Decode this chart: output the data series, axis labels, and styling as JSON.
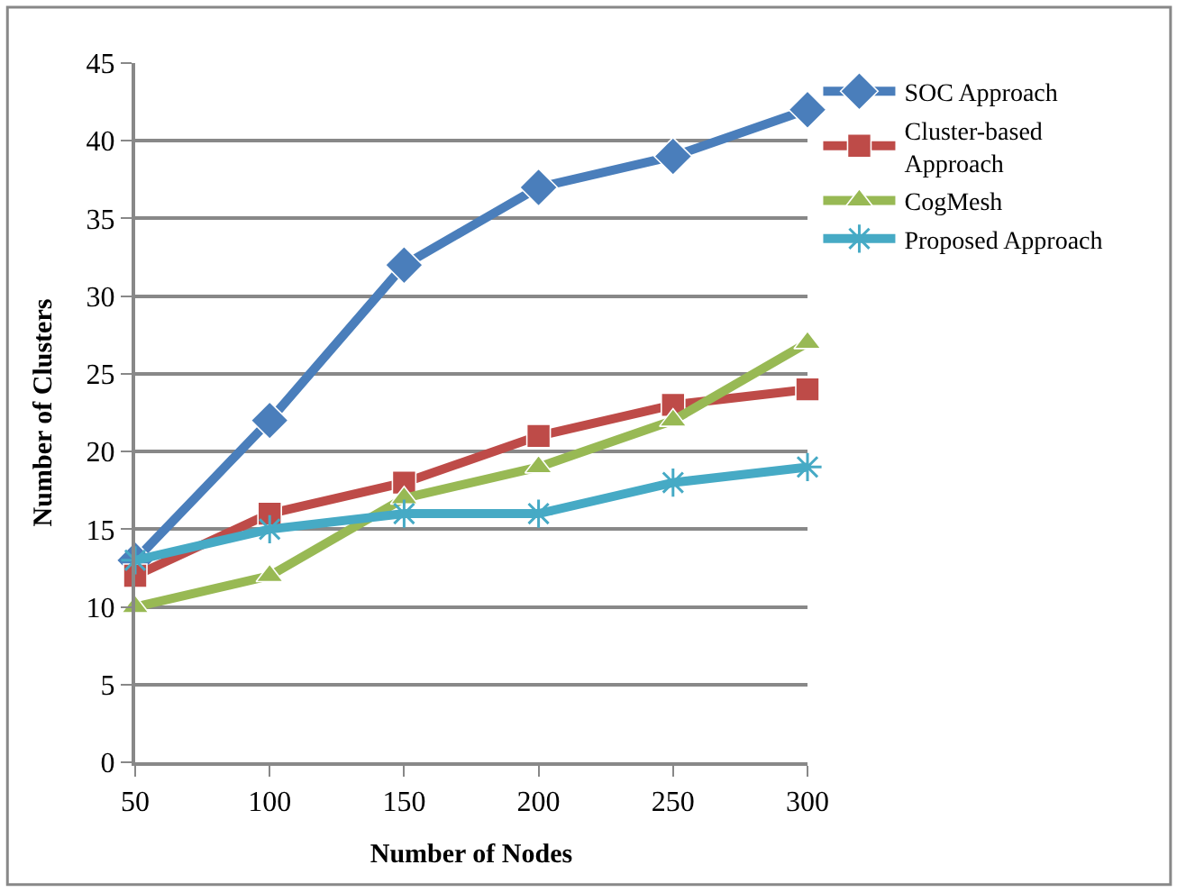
{
  "chart_data": {
    "type": "line",
    "xlabel": "Number of Nodes",
    "ylabel": "Number of Clusters",
    "x": [
      50,
      100,
      150,
      200,
      250,
      300
    ],
    "xlim": [
      50,
      300
    ],
    "xticks": [
      50,
      100,
      150,
      200,
      250,
      300
    ],
    "ylim": [
      0,
      45
    ],
    "yticks": [
      0,
      5,
      10,
      15,
      20,
      25,
      30,
      35,
      40,
      45
    ],
    "grid": "y",
    "legend": "top right",
    "series": [
      {
        "name": "SOC Approach",
        "color": "#4a7ebb",
        "marker": "diamond",
        "values": [
          13,
          22,
          32,
          37,
          39,
          42
        ]
      },
      {
        "name": "Cluster-based Approach",
        "color": "#be4b48",
        "marker": "square",
        "values": [
          12,
          16,
          18,
          21,
          23,
          24
        ]
      },
      {
        "name": "CogMesh",
        "color": "#98b954",
        "marker": "triangle",
        "values": [
          10,
          12,
          17,
          19,
          22,
          27
        ]
      },
      {
        "name": "Proposed Approach",
        "color": "#46aac5",
        "marker": "cross",
        "values": [
          13,
          15,
          16,
          16,
          18,
          19
        ]
      }
    ]
  }
}
